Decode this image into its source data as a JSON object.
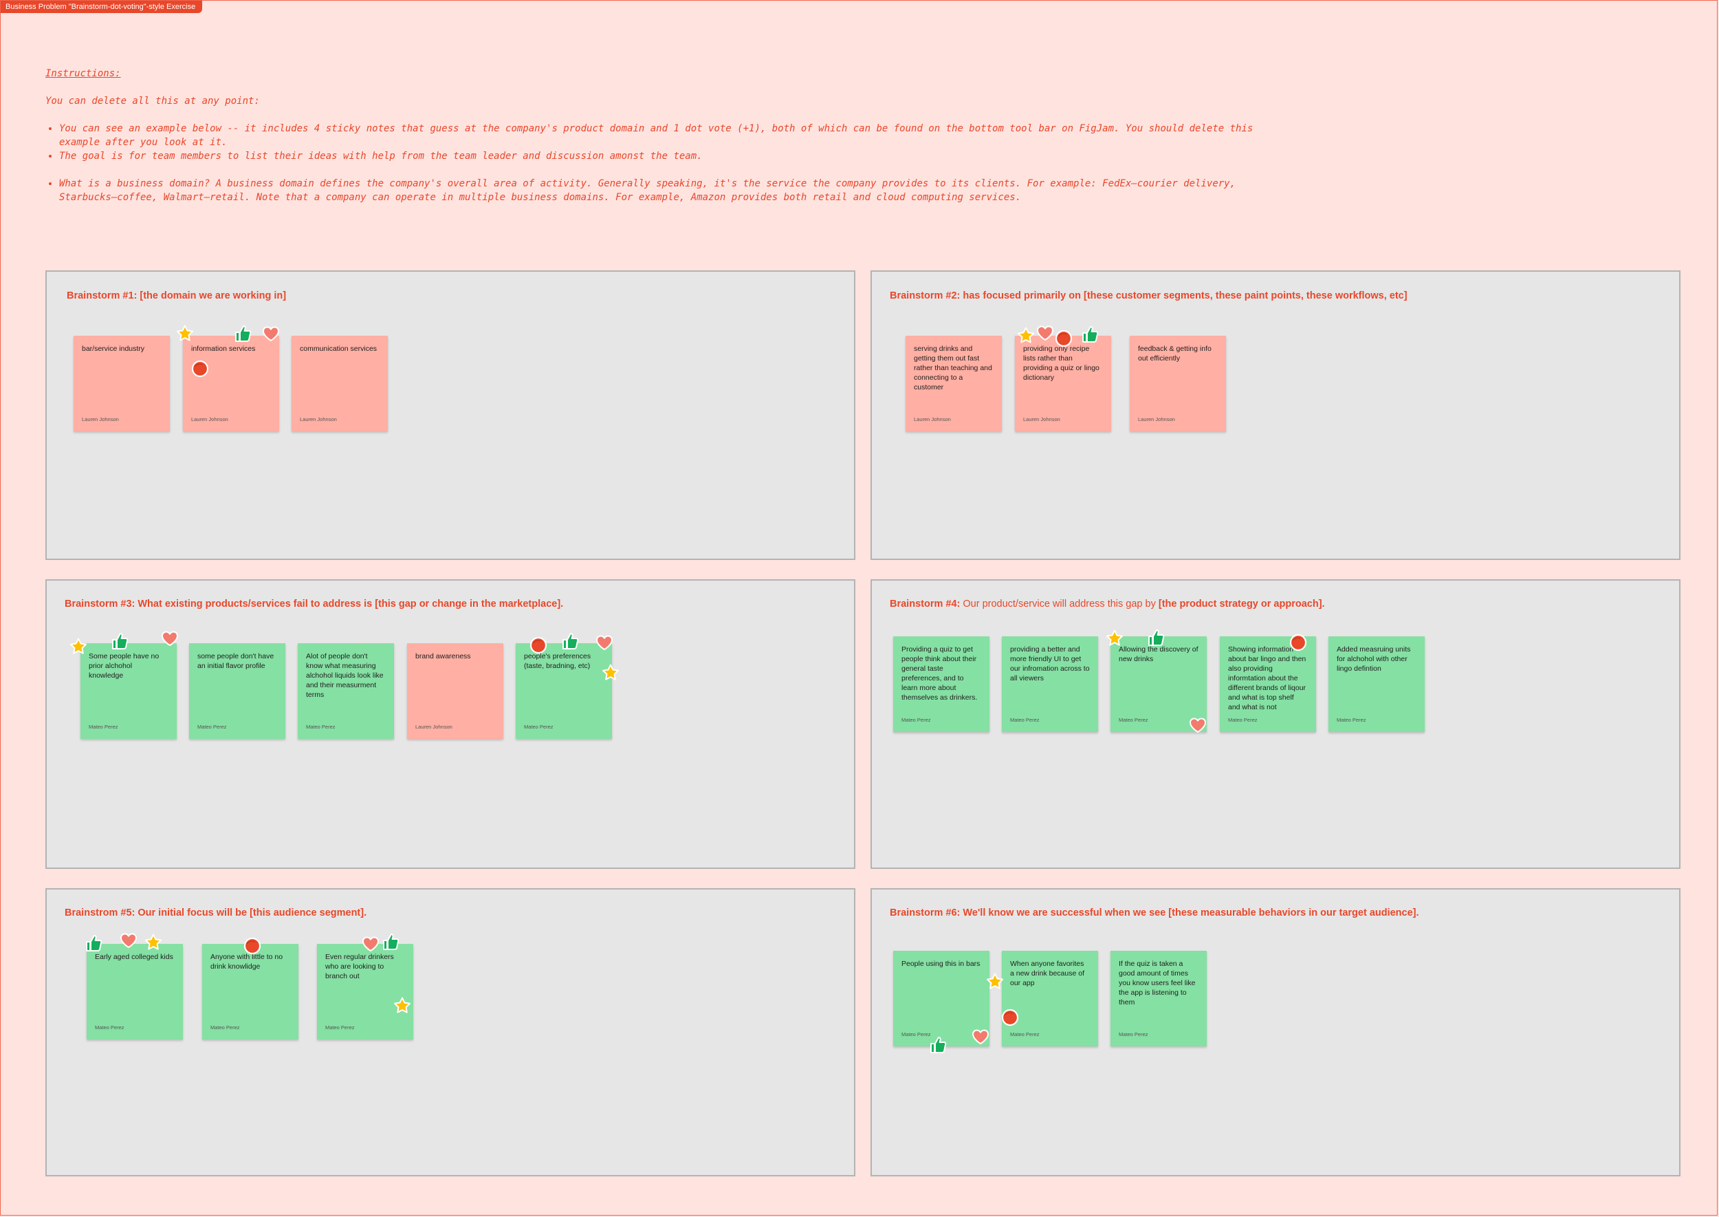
{
  "frame_label": "Business Problem \"Brainstorm-dot-voting\"-style Exercise",
  "instructions": {
    "title": "Instructions:",
    "intro": "You can delete all this at any point:",
    "bullets": [
      "You can see an example below -- it includes 4 sticky notes that guess at the company's product domain and 1 dot vote (+1), both of which can be found on the bottom tool bar on FigJam. You should delete this example after you look at it.",
      "The goal is for team members to list their ideas with help from the team leader and discussion amonst the team.",
      "What is a business domain? A business domain defines the company's overall area of activity. Generally speaking, it's the service the company provides to its clients. For example: FedEx—courier delivery, Starbucks—coffee, Walmart—retail. Note that a company can operate in multiple business domains. For example, Amazon provides both retail and cloud computing services."
    ]
  },
  "panels": [
    {
      "title_bold": "Brainstorm #1: [the domain we are working in]",
      "stickies": [
        {
          "text": "bar/service industry",
          "author": "Lauren Johnson",
          "color": "#ffafa3"
        },
        {
          "text": "information services",
          "author": "Lauren Johnson",
          "color": "#ffafa3"
        },
        {
          "text": "communication services",
          "author": "Lauren Johnson",
          "color": "#ffafa3"
        }
      ]
    },
    {
      "title_bold": "Brainstorm #2: has focused primarily on [these customer segments, these paint points, these workflows, etc]",
      "stickies": [
        {
          "text": "serving drinks and getting them out fast rather than teaching and connecting to a customer",
          "author": "Lauren Johnson",
          "color": "#ffafa3"
        },
        {
          "text": "providing only recipe lists rather than providing a quiz or lingo dictionary",
          "author": "Lauren Johnson",
          "color": "#ffafa3"
        },
        {
          "text": "feedback & getting info out efficiently",
          "author": "Lauren Johnson",
          "color": "#ffafa3"
        }
      ]
    },
    {
      "title_bold": "Brainstorm #3: What existing products/services fail to address is [this gap or change in the marketplace].",
      "stickies": [
        {
          "text": "Some people have no prior alchohol knowledge",
          "author": "Mateo Perez",
          "color": "#85e0a3"
        },
        {
          "text": "some people don't have an initial flavor profile",
          "author": "Mateo Perez",
          "color": "#85e0a3"
        },
        {
          "text": "Alot of people don't know what measuring alchohol liquids look like and their measurment terms",
          "author": "Mateo Perez",
          "color": "#85e0a3"
        },
        {
          "text": "brand awareness",
          "author": "Lauren Johnson",
          "color": "#ffafa3"
        },
        {
          "text": "people's preferences (taste, bradning, etc)",
          "author": "Mateo Perez",
          "color": "#85e0a3"
        }
      ]
    },
    {
      "title_bold": "Brainstorm #4:",
      "title_normal": " Our product/service will address this gap by ",
      "title_bold2": "[the product strategy or approach].",
      "stickies": [
        {
          "text": "Providing a quiz to get people think about their general taste preferences, and to learn more about themselves as drinkers.",
          "author": "Mateo Perez",
          "color": "#85e0a3"
        },
        {
          "text": "providing a better and more friendly UI to get our infromation across to all viewers",
          "author": "Mateo Perez",
          "color": "#85e0a3"
        },
        {
          "text": "Allowing the  discovery of new drinks",
          "author": "Mateo Perez",
          "color": "#85e0a3"
        },
        {
          "text": "Showing information about bar lingo and then also providing informtation about the different brands of liqour and what is top shelf and what is not",
          "author": "Mateo Perez",
          "color": "#85e0a3"
        },
        {
          "text": "Added measruing units for alchohol with other lingo defintion",
          "author": "Mateo Perez",
          "color": "#85e0a3"
        }
      ]
    },
    {
      "title_bold": "Brainstrom #5: Our initial focus will be [this audience segment].",
      "stickies": [
        {
          "text": "Early aged colleged kids",
          "author": "Mateo Perez",
          "color": "#85e0a3"
        },
        {
          "text": "Anyone with little to no drink knowlidge",
          "author": "Mateo Perez",
          "color": "#85e0a3"
        },
        {
          "text": "Even regular drinkers who are looking to branch out",
          "author": "Mateo Perez",
          "color": "#85e0a3"
        }
      ]
    },
    {
      "title_bold": "Brainstorm #6: We'll know we are successful when we see [these measurable behaviors in our target audience].",
      "stickies": [
        {
          "text": "People using this in bars",
          "author": "Mateo Perez",
          "color": "#85e0a3"
        },
        {
          "text": "When anyone favorites a new drink because of our app",
          "author": "Mateo Perez",
          "color": "#85e0a3"
        },
        {
          "text": "If the quiz is taken a good amount of times you know users feel like the app is listening to them",
          "author": "Mateo Perez",
          "color": "#85e0a3"
        }
      ]
    }
  ],
  "colors": {
    "accent": "#e8472a",
    "background": "#ffe3df",
    "panel": "#e6e6e6",
    "sticky_pink": "#ffafa3",
    "sticky_green": "#85e0a3",
    "star": "#ffc000",
    "thumb": "#14ae5c",
    "heart": "#f27b6d",
    "dot": "#e8472a"
  },
  "sticker_icons": [
    "star-sticker-icon",
    "thumbs-up-sticker-icon",
    "heart-sticker-icon",
    "red-dot-sticker-icon"
  ]
}
